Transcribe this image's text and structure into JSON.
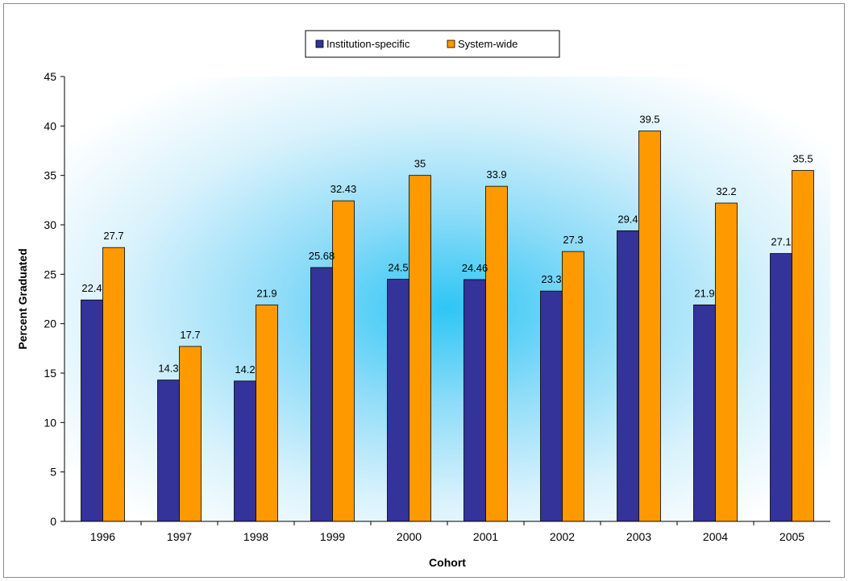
{
  "chart_data": {
    "type": "bar",
    "categories": [
      "1996",
      "1997",
      "1998",
      "1999",
      "2000",
      "2001",
      "2002",
      "2003",
      "2004",
      "2005"
    ],
    "series": [
      {
        "name": "Institution-specific",
        "color": "#333399",
        "values": [
          22.4,
          14.3,
          14.2,
          25.68,
          24.5,
          24.46,
          23.3,
          29.4,
          21.9,
          27.1
        ],
        "labels": [
          "22.4",
          "14.3",
          "14.2",
          "25.68",
          "24.5",
          "24.46",
          "23.3",
          "29.4",
          "21.9",
          "27.1"
        ]
      },
      {
        "name": "System-wide",
        "color": "#FF9900",
        "values": [
          27.7,
          17.7,
          21.9,
          32.43,
          35,
          33.9,
          27.3,
          39.5,
          32.2,
          35.5
        ],
        "labels": [
          "27.7",
          "17.7",
          "21.9",
          "32.43",
          "35",
          "33.9",
          "27.3",
          "39.5",
          "32.2",
          "35.5"
        ]
      }
    ],
    "xlabel": "Cohort",
    "ylabel": "Percent Graduated",
    "ylim": [
      0,
      45
    ],
    "yticks": [
      "0",
      "5",
      "10",
      "15",
      "20",
      "25",
      "30",
      "35",
      "40",
      "45"
    ],
    "grid": false,
    "legend_position": "top-center",
    "plot_background": "radial-gradient light blue"
  }
}
